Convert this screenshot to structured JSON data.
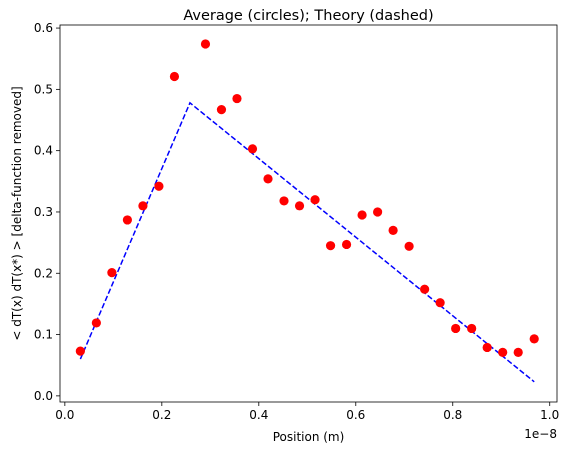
{
  "chart_data": {
    "type": "scatter",
    "title": "Average (circles); Theory (dashed)",
    "xlabel": "Position (m)",
    "ylabel": "< dT(x) dT(x*) > [delta-function removed]",
    "x_offset_label": "1e−8",
    "xlim": [
      -0.01,
      1.015
    ],
    "ylim": [
      -0.01,
      0.605
    ],
    "x_ticks": [
      0.0,
      0.2,
      0.4,
      0.6,
      0.8,
      1.0
    ],
    "x_tick_labels": [
      "0.0",
      "0.2",
      "0.4",
      "0.6",
      "0.8",
      "1.0"
    ],
    "y_ticks": [
      0.0,
      0.1,
      0.2,
      0.3,
      0.4,
      0.5,
      0.6
    ],
    "y_tick_labels": [
      "0.0",
      "0.1",
      "0.2",
      "0.3",
      "0.4",
      "0.5",
      "0.6"
    ],
    "grid": false,
    "legend": "none",
    "colors": {
      "points": "#ff0000",
      "theory": "#0000ff"
    },
    "series": [
      {
        "type": "scatter",
        "marker": "circle",
        "x": [
          0.032,
          0.065,
          0.097,
          0.129,
          0.161,
          0.194,
          0.226,
          0.29,
          0.323,
          0.355,
          0.387,
          0.419,
          0.452,
          0.484,
          0.516,
          0.548,
          0.581,
          0.613,
          0.645,
          0.677,
          0.71,
          0.742,
          0.774,
          0.806,
          0.839,
          0.871,
          0.903,
          0.935,
          0.968
        ],
        "y": [
          0.073,
          0.119,
          0.201,
          0.287,
          0.31,
          0.342,
          0.521,
          0.574,
          0.467,
          0.485,
          0.403,
          0.354,
          0.318,
          0.31,
          0.32,
          0.245,
          0.247,
          0.295,
          0.3,
          0.27,
          0.244,
          0.174,
          0.152,
          0.11,
          0.11,
          0.079,
          0.071,
          0.071,
          0.093
        ]
      },
      {
        "type": "line",
        "style": "dashed",
        "x": [
          0.032,
          0.258,
          0.968
        ],
        "y": [
          0.06,
          0.478,
          0.023
        ]
      }
    ]
  }
}
